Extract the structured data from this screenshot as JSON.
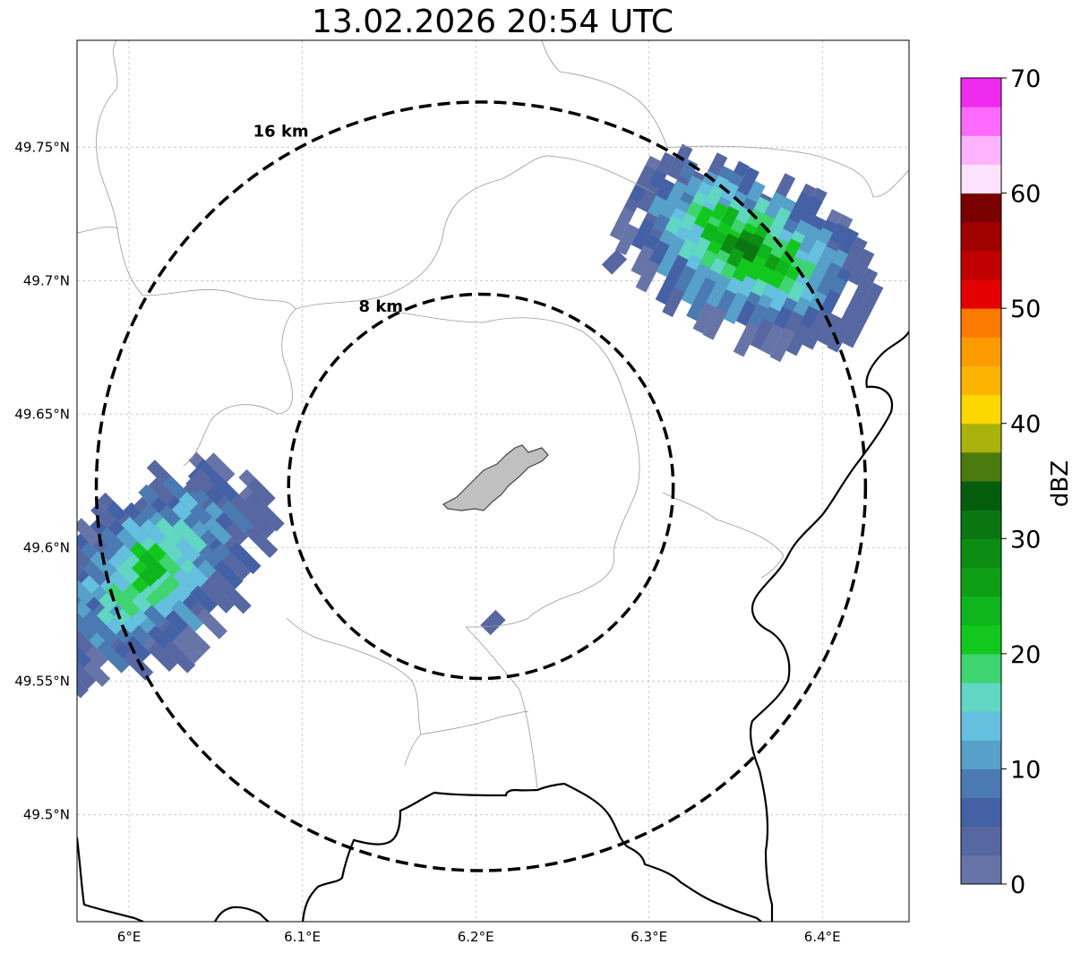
{
  "title": "13.02.2026 20:54 UTC",
  "map": {
    "lon_range": [
      5.97,
      6.45
    ],
    "lat_range": [
      49.46,
      49.79
    ],
    "lon_ticks": [
      {
        "value": 6.0,
        "label": "6°E"
      },
      {
        "value": 6.1,
        "label": "6.1°E"
      },
      {
        "value": 6.2,
        "label": "6.2°E"
      },
      {
        "value": 6.3,
        "label": "6.3°E"
      },
      {
        "value": 6.4,
        "label": "6.4°E"
      }
    ],
    "lat_ticks": [
      {
        "value": 49.75,
        "label": "49.75°N"
      },
      {
        "value": 49.7,
        "label": "49.7°N"
      },
      {
        "value": 49.65,
        "label": "49.65°N"
      },
      {
        "value": 49.6,
        "label": "49.6°N"
      },
      {
        "value": 49.55,
        "label": "49.55°N"
      },
      {
        "value": 49.5,
        "label": "49.5°N"
      }
    ],
    "grid": true,
    "radar_center": {
      "lon": 6.203,
      "lat": 49.623
    },
    "range_rings": [
      {
        "radius_km": 8,
        "label": "8 km"
      },
      {
        "radius_km": 16,
        "label": "16 km"
      }
    ],
    "echo_regions": [
      {
        "name": "northeast",
        "center": {
          "lon": 6.355,
          "lat": 49.71
        },
        "orientation": "NW-SE",
        "max_dbz": 28
      },
      {
        "name": "southwest",
        "center": {
          "lon": 6.015,
          "lat": 49.59
        },
        "orientation": "NE-SW",
        "max_dbz": 22
      }
    ],
    "colors": {
      "national_border": "#000000",
      "admin_border": "#999999",
      "city_fill": "#c0c0c0"
    }
  },
  "colorbar": {
    "label": "dBZ",
    "min": 0,
    "max": 70,
    "ticks": [
      0,
      10,
      20,
      30,
      40,
      50,
      60,
      70
    ],
    "tick_labels": [
      "0",
      "10",
      "20",
      "30",
      "40",
      "50",
      "60",
      "70"
    ],
    "colors": [
      "#6674a8",
      "#5667a2",
      "#4561a5",
      "#4a7ab1",
      "#56a0c9",
      "#64c0de",
      "#60d6c3",
      "#3ed46f",
      "#12c81e",
      "#0fb51c",
      "#0f9f16",
      "#0c8c13",
      "#0a7612",
      "#055c0c",
      "#4b7a0e",
      "#aab20c",
      "#fdd700",
      "#fcb400",
      "#fe9b00",
      "#fd7a00",
      "#e40000",
      "#c10000",
      "#a00000",
      "#7a0000",
      "#fde2fd",
      "#fdb3fd",
      "#fd6afd",
      "#ef2bef"
    ]
  }
}
